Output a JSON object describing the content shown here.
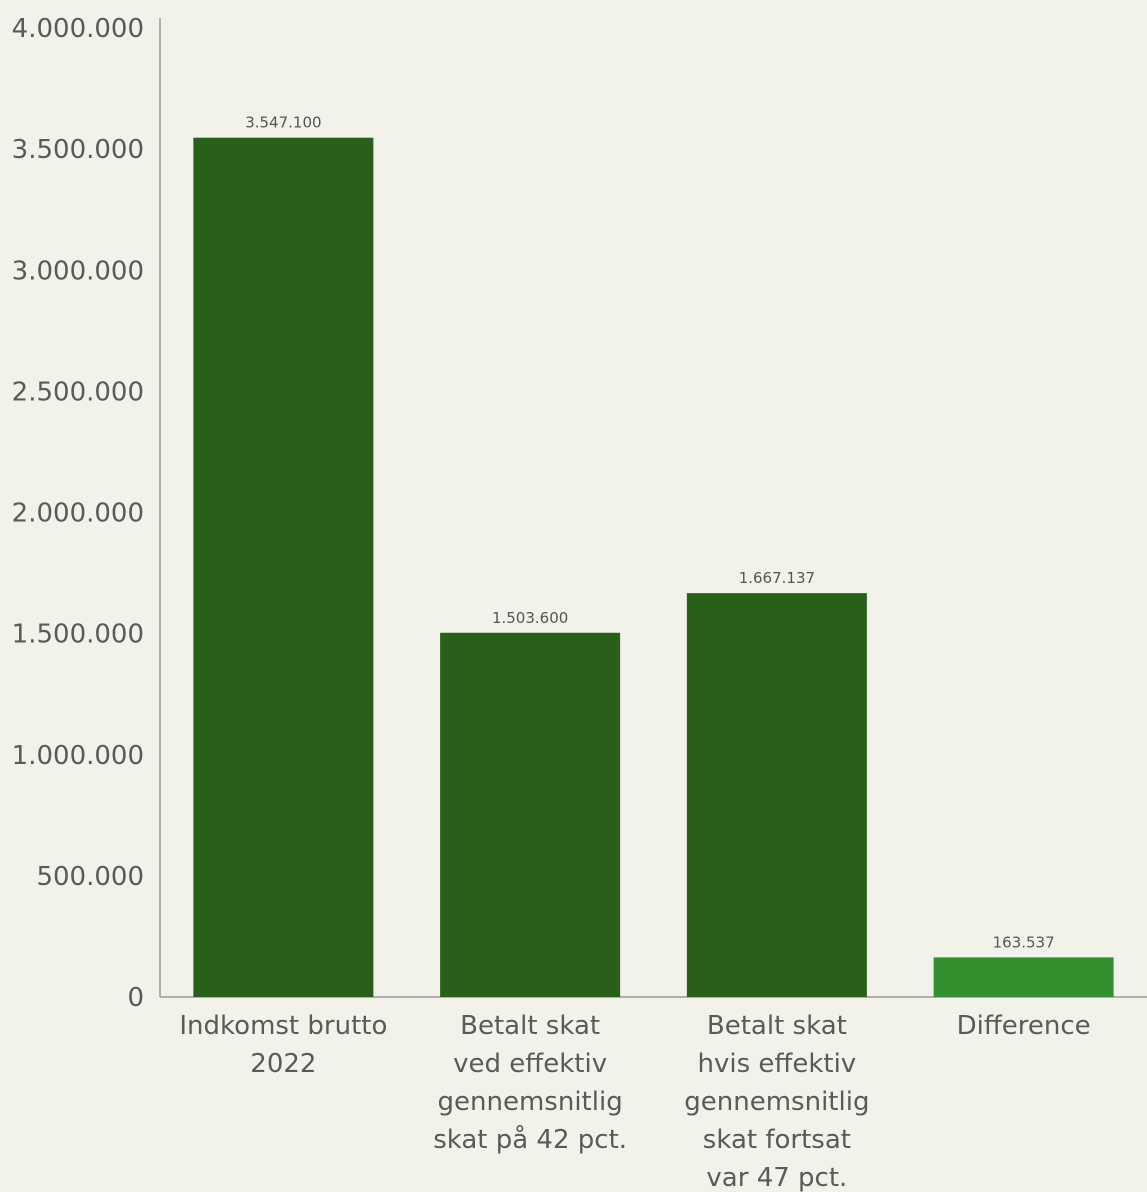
{
  "chart_data": {
    "type": "bar",
    "categories": [
      [
        "Indkomst brutto",
        "2022"
      ],
      [
        "Betalt skat",
        "ved effektiv",
        "gennemsnitlig",
        "skat på 42 pct."
      ],
      [
        "Betalt skat",
        "hvis effektiv",
        "gennemsnitlig",
        "skat fortsat",
        "var 47 pct."
      ],
      [
        "Difference"
      ]
    ],
    "values": [
      3547100,
      1503600,
      1667137,
      163537
    ],
    "data_labels": [
      "3.547.100",
      "1.503.600",
      "1.667.137",
      "163.537"
    ],
    "bar_colors": [
      "#2a5e1b",
      "#2a5e1b",
      "#2a5e1b",
      "#33902f"
    ],
    "ylim": [
      0,
      4000000
    ],
    "yticks": [
      0,
      500000,
      1000000,
      1500000,
      2000000,
      2500000,
      3000000,
      3500000,
      4000000
    ],
    "ytick_labels": [
      "0",
      "500.000",
      "1.000.000",
      "1.500.000",
      "2.000.000",
      "2.500.000",
      "3.000.000",
      "3.500.000",
      "4.000.000"
    ],
    "grid": false,
    "legend": "none",
    "title": "",
    "xlabel": "",
    "ylabel": ""
  }
}
